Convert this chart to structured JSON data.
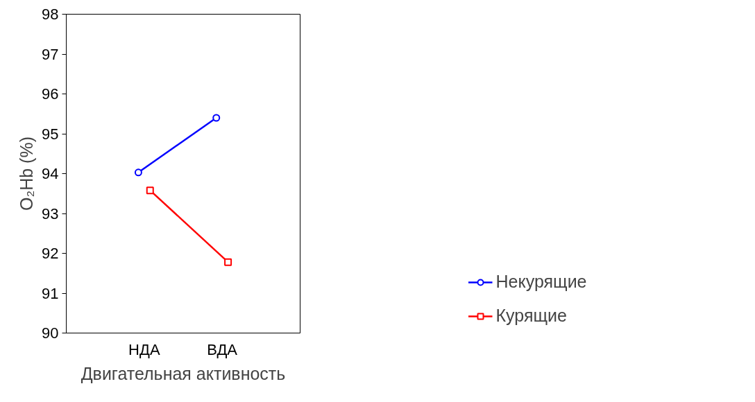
{
  "chart_data": {
    "type": "line",
    "xlabel": "Двигательная активность",
    "ylabel": "O₂Hb (%)",
    "categories": [
      "НДА",
      "ВДА"
    ],
    "series": [
      {
        "name": "Некурящие",
        "color": "#0000ff",
        "marker": "circle",
        "values": [
          94.03,
          95.4
        ]
      },
      {
        "name": "Курящие",
        "color": "#ff0000",
        "marker": "square",
        "values": [
          93.58,
          91.78
        ]
      }
    ],
    "ylim": [
      90,
      98
    ],
    "yticks": [
      90,
      91,
      92,
      93,
      94,
      95,
      96,
      97,
      98
    ],
    "grid": false,
    "legend": "bottom right",
    "line_style": "solid"
  }
}
